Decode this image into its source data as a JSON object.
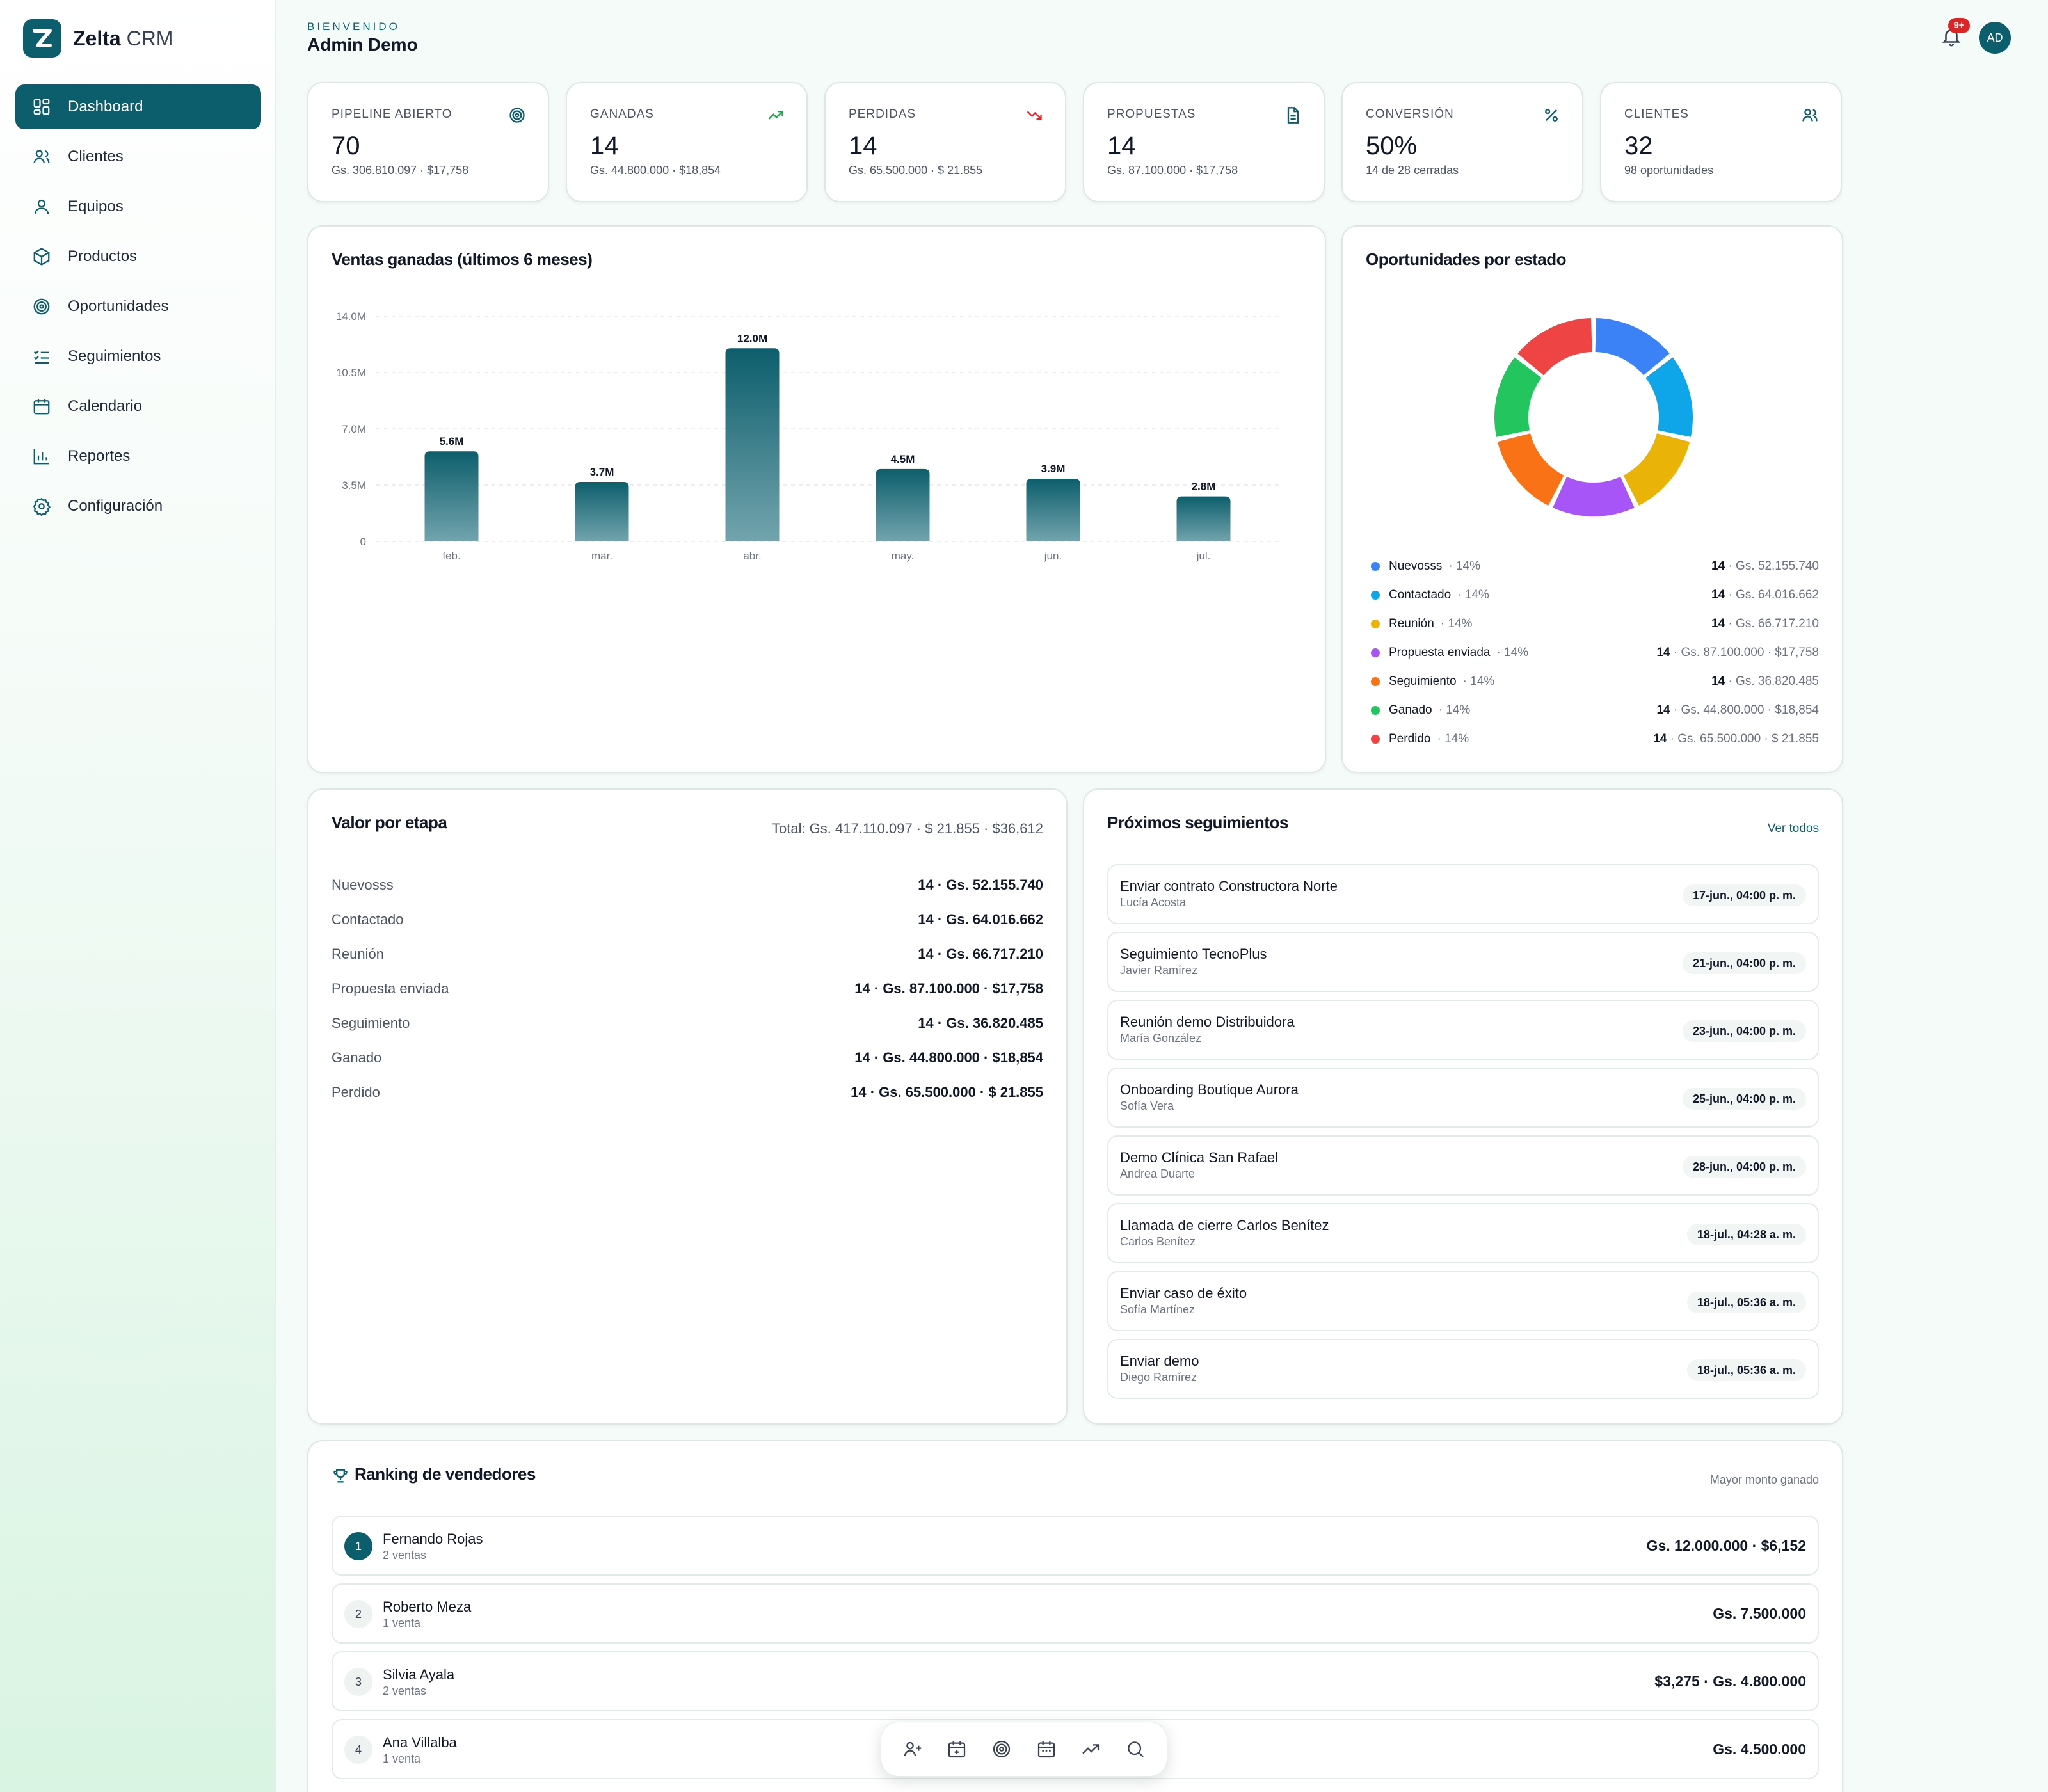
{
  "brand": {
    "name_bold": "Zelta",
    "name_light": "CRM"
  },
  "sidebar": {
    "items": [
      {
        "label": "Dashboard",
        "icon": "dashboard-icon",
        "active": true
      },
      {
        "label": "Clientes",
        "icon": "users-icon"
      },
      {
        "label": "Equipos",
        "icon": "user-icon"
      },
      {
        "label": "Productos",
        "icon": "box-icon"
      },
      {
        "label": "Oportunidades",
        "icon": "target-icon"
      },
      {
        "label": "Seguimientos",
        "icon": "list-check-icon"
      },
      {
        "label": "Calendario",
        "icon": "calendar-icon"
      },
      {
        "label": "Reportes",
        "icon": "bar-chart-icon"
      },
      {
        "label": "Configuración",
        "icon": "gear-icon"
      }
    ]
  },
  "header": {
    "welcome": "BIENVENIDO",
    "user_name": "Admin Demo",
    "notification_badge": "9+",
    "avatar_initials": "AD"
  },
  "kpis": [
    {
      "label": "PIPELINE ABIERTO",
      "value": "70",
      "sub": "Gs. 306.810.097 · $17,758",
      "icon": "target-icon",
      "icon_color": "#0d5e6c"
    },
    {
      "label": "GANADAS",
      "value": "14",
      "sub": "Gs. 44.800.000 · $18,854",
      "icon": "trending-up-icon",
      "icon_color": "#16a34a"
    },
    {
      "label": "PERDIDAS",
      "value": "14",
      "sub": "Gs. 65.500.000 · $ 21.855",
      "icon": "trending-down-icon",
      "icon_color": "#dc2626"
    },
    {
      "label": "PROPUESTAS",
      "value": "14",
      "sub": "Gs. 87.100.000 · $17,758",
      "icon": "document-icon",
      "icon_color": "#0d5e6c"
    },
    {
      "label": "CONVERSIÓN",
      "value": "50%",
      "sub": "14 de 28 cerradas",
      "icon": "percent-icon",
      "icon_color": "#0d5e6c"
    },
    {
      "label": "CLIENTES",
      "value": "32",
      "sub": "98 oportunidades",
      "icon": "users-icon",
      "icon_color": "#0d5e6c"
    }
  ],
  "sales_chart": {
    "title": "Ventas ganadas (últimos 6 meses)"
  },
  "chart_data": [
    {
      "type": "bar",
      "title": "Ventas ganadas (últimos 6 meses)",
      "categories": [
        "feb.",
        "mar.",
        "abr.",
        "may.",
        "jun.",
        "jul."
      ],
      "values": [
        5.6,
        3.7,
        12.0,
        4.5,
        3.9,
        2.8
      ],
      "data_labels": [
        "5.6M",
        "3.7M",
        "12.0M",
        "4.5M",
        "3.9M",
        "2.8M"
      ],
      "y_ticks": [
        "0",
        "3.5M",
        "7.0M",
        "10.5M",
        "14.0M"
      ],
      "ylim": [
        0,
        14.0
      ],
      "grid": true,
      "colors": {
        "bar_top": "#0d5e6c",
        "bar_bottom": "#72a4ad"
      }
    },
    {
      "type": "pie",
      "title": "Oportunidades por estado",
      "labels": [
        "Nuevosss",
        "Contactado",
        "Reunión",
        "Propuesta enviada",
        "Seguimiento",
        "Ganado",
        "Perdido"
      ],
      "values": [
        14,
        14,
        14,
        14,
        14,
        14,
        14
      ],
      "colors": [
        "#3b82f6",
        "#0ea5e9",
        "#eab308",
        "#a855f7",
        "#f97316",
        "#22c55e",
        "#ef4444"
      ],
      "donut": true
    }
  ],
  "status_chart": {
    "title": "Oportunidades por estado",
    "legend": [
      {
        "name": "Nuevosss",
        "pct": "· 14%",
        "count": "14",
        "amount": "· Gs. 52.155.740",
        "color": "#3b82f6"
      },
      {
        "name": "Contactado",
        "pct": "· 14%",
        "count": "14",
        "amount": "· Gs. 64.016.662",
        "color": "#0ea5e9"
      },
      {
        "name": "Reunión",
        "pct": "· 14%",
        "count": "14",
        "amount": "· Gs. 66.717.210",
        "color": "#eab308"
      },
      {
        "name": "Propuesta enviada",
        "pct": "· 14%",
        "count": "14",
        "amount": "· Gs. 87.100.000 · $17,758",
        "color": "#a855f7"
      },
      {
        "name": "Seguimiento",
        "pct": "· 14%",
        "count": "14",
        "amount": "· Gs. 36.820.485",
        "color": "#f97316"
      },
      {
        "name": "Ganado",
        "pct": "· 14%",
        "count": "14",
        "amount": "· Gs. 44.800.000 · $18,854",
        "color": "#22c55e"
      },
      {
        "name": "Perdido",
        "pct": "· 14%",
        "count": "14",
        "amount": "· Gs. 65.500.000 · $ 21.855",
        "color": "#ef4444"
      }
    ]
  },
  "stages": {
    "title": "Valor por etapa",
    "total": "Total: Gs. 417.110.097 · $ 21.855 · $36,612",
    "rows": [
      {
        "name": "Nuevosss",
        "value": "14 · Gs. 52.155.740"
      },
      {
        "name": "Contactado",
        "value": "14 · Gs. 64.016.662"
      },
      {
        "name": "Reunión",
        "value": "14 · Gs. 66.717.210"
      },
      {
        "name": "Propuesta enviada",
        "value": "14 · Gs. 87.100.000 · $17,758"
      },
      {
        "name": "Seguimiento",
        "value": "14 · Gs. 36.820.485"
      },
      {
        "name": "Ganado",
        "value": "14 · Gs. 44.800.000 · $18,854"
      },
      {
        "name": "Perdido",
        "value": "14 · Gs. 65.500.000 · $ 21.855"
      }
    ]
  },
  "followups": {
    "title": "Próximos seguimientos",
    "link": "Ver todos",
    "items": [
      {
        "title": "Enviar contrato Constructora Norte",
        "person": "Lucía Acosta",
        "date": "17-jun., 04:00 p. m."
      },
      {
        "title": "Seguimiento TecnoPlus",
        "person": "Javier Ramírez",
        "date": "21-jun., 04:00 p. m."
      },
      {
        "title": "Reunión demo Distribuidora",
        "person": "María González",
        "date": "23-jun., 04:00 p. m."
      },
      {
        "title": "Onboarding Boutique Aurora",
        "person": "Sofía Vera",
        "date": "25-jun., 04:00 p. m."
      },
      {
        "title": "Demo Clínica San Rafael",
        "person": "Andrea Duarte",
        "date": "28-jun., 04:00 p. m."
      },
      {
        "title": "Llamada de cierre Carlos Benítez",
        "person": "Carlos Benítez",
        "date": "18-jul., 04:28 a. m."
      },
      {
        "title": "Enviar caso de éxito",
        "person": "Sofía Martínez",
        "date": "18-jul., 05:36 a. m."
      },
      {
        "title": "Enviar demo",
        "person": "Diego Ramírez",
        "date": "18-jul., 05:36 a. m."
      }
    ]
  },
  "ranking": {
    "title": "Ranking de vendedores",
    "subtitle": "Mayor monto ganado",
    "items": [
      {
        "rank": "1",
        "name": "Fernando Rojas",
        "sales": "2 ventas",
        "amount": "Gs. 12.000.000 · $6,152"
      },
      {
        "rank": "2",
        "name": "Roberto Meza",
        "sales": "1 venta",
        "amount": "Gs. 7.500.000"
      },
      {
        "rank": "3",
        "name": "Silvia Ayala",
        "sales": "2 ventas",
        "amount": "$3,275 · Gs. 4.800.000"
      },
      {
        "rank": "4",
        "name": "Ana Villalba",
        "sales": "1 venta",
        "amount": "Gs. 4.500.000"
      }
    ]
  },
  "toolbar": {
    "icons": [
      "add-user-icon",
      "calendar-add-icon",
      "target-icon",
      "calendar-icon",
      "trending-up-icon",
      "search-icon"
    ]
  }
}
